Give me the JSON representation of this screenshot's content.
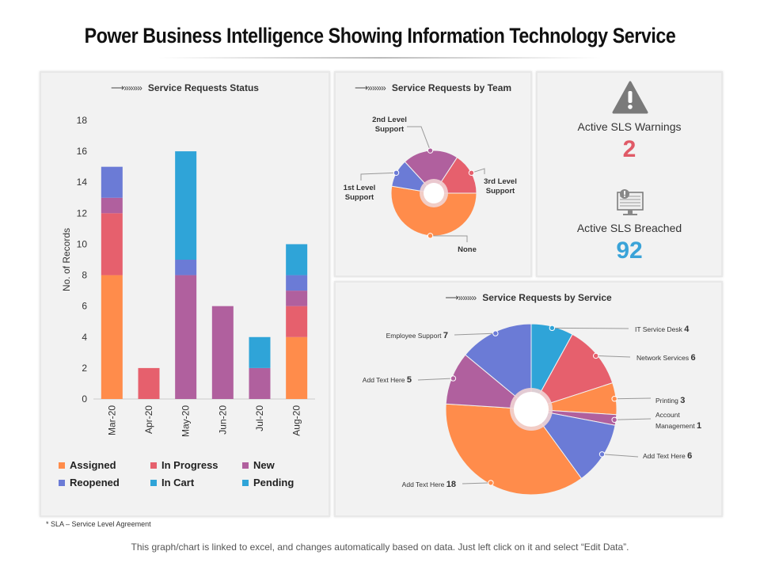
{
  "title": "Power Business Intelligence Showing Information Technology Service",
  "arrow": "⟶»»»»",
  "status_panel": {
    "header": "Service Requests Status"
  },
  "team_panel": {
    "header": "Service Requests by Team"
  },
  "service_panel": {
    "header": "Service Requests by Service"
  },
  "kpis": {
    "warnings_label": "Active SLS Warnings",
    "warnings_value": "2",
    "warnings_color": "#e05a67",
    "breached_label": "Active SLS Breached",
    "breached_value": "92",
    "breached_color": "#3aa3d8"
  },
  "colors": {
    "assigned": "#ff8c4b",
    "in_progress": "#e6606d",
    "new": "#b0609e",
    "reopened": "#6b7bd6",
    "in_cart": "#2fa4d8",
    "pending": "#2fa4d8"
  },
  "legend": [
    {
      "key": "assigned",
      "label": "Assigned"
    },
    {
      "key": "in_progress",
      "label": "In Progress"
    },
    {
      "key": "new",
      "label": "New"
    },
    {
      "key": "reopened",
      "label": "Reopened"
    },
    {
      "key": "in_cart",
      "label": "In Cart"
    },
    {
      "key": "pending",
      "label": "Pending"
    }
  ],
  "chart_data": [
    {
      "type": "bar",
      "stacked": true,
      "title": "Service Requests Status",
      "xlabel": "",
      "ylabel": "No. of Records",
      "ylim": [
        0,
        18
      ],
      "yticks": [
        0,
        2,
        4,
        6,
        8,
        10,
        12,
        14,
        16,
        18
      ],
      "categories": [
        "Mar-20",
        "Apr-20",
        "May-20",
        "Jun-20",
        "Jul-20",
        "Aug-20"
      ],
      "series": [
        {
          "name": "Assigned",
          "key": "assigned",
          "values": [
            8,
            0,
            0,
            0,
            0,
            4
          ]
        },
        {
          "name": "In Progress",
          "key": "in_progress",
          "values": [
            4,
            2,
            0,
            0,
            0,
            2
          ]
        },
        {
          "name": "New",
          "key": "new",
          "values": [
            1,
            0,
            8,
            6,
            2,
            1
          ]
        },
        {
          "name": "Reopened",
          "key": "reopened",
          "values": [
            2,
            0,
            1,
            0,
            0,
            1
          ]
        },
        {
          "name": "In Cart",
          "key": "in_cart",
          "values": [
            0,
            0,
            7,
            0,
            2,
            0
          ]
        },
        {
          "name": "Pending",
          "key": "pending",
          "values": [
            0,
            0,
            0,
            0,
            0,
            2
          ]
        }
      ]
    },
    {
      "type": "pie",
      "title": "Service Requests by Team",
      "slices": [
        {
          "label": "None",
          "value": 50,
          "color": "#ff8c4b"
        },
        {
          "label": "1st Level Support",
          "value": 10,
          "color": "#6b7bd6"
        },
        {
          "label": "2nd Level Support",
          "value": 20,
          "color": "#b0609e"
        },
        {
          "label": "3rd Level Support",
          "value": 15,
          "color": "#e6606d"
        }
      ]
    },
    {
      "type": "pie",
      "title": "Service Requests by Service",
      "slices": [
        {
          "label": "IT Service Desk",
          "value": 4,
          "color": "#2fa4d8"
        },
        {
          "label": "Network Services",
          "value": 6,
          "color": "#e6606d"
        },
        {
          "label": "Printing",
          "value": 3,
          "color": "#ff8c4b"
        },
        {
          "label": "Account Management",
          "value": 1,
          "color": "#b0609e"
        },
        {
          "label": "Add Text Here",
          "value": 6,
          "color": "#6b7bd6"
        },
        {
          "label": "Add Text Here",
          "value": 18,
          "color": "#ff8c4b"
        },
        {
          "label": "Add Text Here",
          "value": 5,
          "color": "#b0609e"
        },
        {
          "label": "Employee Support",
          "value": 7,
          "color": "#6b7bd6"
        }
      ]
    }
  ],
  "team_labels": [
    {
      "line1": "2nd Level",
      "line2": "Support"
    },
    {
      "line1": "3rd Level",
      "line2": "Support"
    },
    {
      "line1": "1st Level",
      "line2": "Support"
    },
    {
      "line1": "None",
      "line2": ""
    }
  ],
  "service_labels": [
    {
      "text": "IT Service Desk",
      "value": "4"
    },
    {
      "text": "Network Services",
      "value": "6"
    },
    {
      "text": "Printing",
      "value": "3"
    },
    {
      "text": "Account",
      "text2": "Management",
      "value": "1"
    },
    {
      "text": "Add Text Here",
      "value": "6"
    },
    {
      "text": "Add Text Here",
      "value": "18"
    },
    {
      "text": "Add Text Here",
      "value": "5"
    },
    {
      "text": "Employee Support",
      "value": "7"
    }
  ],
  "footnote": "* SLA – Service Level Agreement",
  "footer": "This graph/chart is linked to excel, and changes automatically based on data. Just left click on it and select “Edit Data”."
}
